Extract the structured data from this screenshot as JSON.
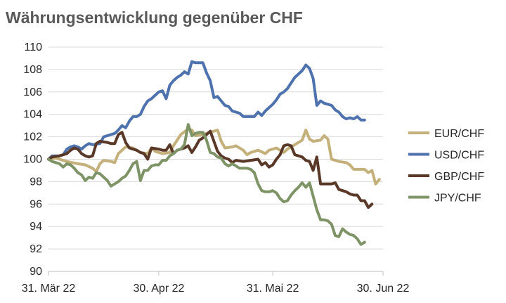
{
  "chart_data": {
    "type": "line",
    "title": "Währungsentwicklung gegenüber CHF",
    "xlabel": "",
    "ylabel": "",
    "ylim": [
      90,
      110
    ],
    "y_ticks": [
      90,
      92,
      94,
      96,
      98,
      100,
      102,
      104,
      106,
      108,
      110
    ],
    "x_range": [
      0,
      91
    ],
    "x_ticks": [
      {
        "x": 0,
        "label": "31. Mär 22"
      },
      {
        "x": 30,
        "label": "30. Apr 22"
      },
      {
        "x": 61,
        "label": "31. Mai 22"
      },
      {
        "x": 91,
        "label": "30. Jun 22"
      }
    ],
    "grid": true,
    "legend_position": "right",
    "series": [
      {
        "name": "EUR/CHF",
        "color": "#C4B07B",
        "points": [
          [
            0,
            100
          ],
          [
            2,
            100.1
          ],
          [
            5,
            99.8
          ],
          [
            8,
            99.6
          ],
          [
            10,
            99.5
          ],
          [
            12,
            99.2
          ],
          [
            13,
            98.9
          ],
          [
            14,
            99.6
          ],
          [
            15,
            99.9
          ],
          [
            17,
            99.8
          ],
          [
            18,
            99.7
          ],
          [
            19,
            100.5
          ],
          [
            21,
            101.1
          ],
          [
            23,
            101
          ],
          [
            25,
            100.6
          ],
          [
            27,
            100.5
          ],
          [
            28,
            101
          ],
          [
            29,
            100.7
          ],
          [
            31,
            100.5
          ],
          [
            33,
            100.6
          ],
          [
            34,
            101.2
          ],
          [
            36,
            102.2
          ],
          [
            38,
            102.7
          ],
          [
            39,
            102.6
          ],
          [
            40,
            102.1
          ],
          [
            42,
            102.2
          ],
          [
            44,
            102.4
          ],
          [
            46,
            102.6
          ],
          [
            47,
            101.6
          ],
          [
            48,
            101
          ],
          [
            50,
            101.1
          ],
          [
            51,
            101.2
          ],
          [
            53,
            100.8
          ],
          [
            54,
            100.4
          ],
          [
            55,
            100.6
          ],
          [
            57,
            100.8
          ],
          [
            59,
            100.5
          ],
          [
            60,
            100.8
          ],
          [
            62,
            101
          ],
          [
            64,
            100.6
          ],
          [
            65,
            100.9
          ],
          [
            67,
            101.3
          ],
          [
            69,
            101.7
          ],
          [
            70,
            102.6
          ],
          [
            71,
            101.8
          ],
          [
            72,
            101.6
          ],
          [
            74,
            101.7
          ],
          [
            75,
            102.1
          ],
          [
            76,
            101.8
          ],
          [
            77,
            100
          ],
          [
            79,
            99.8
          ],
          [
            81,
            99.7
          ],
          [
            82,
            99.5
          ],
          [
            83,
            99.1
          ],
          [
            86,
            99.1
          ],
          [
            87,
            98.8
          ],
          [
            88,
            99
          ],
          [
            89,
            97.8
          ],
          [
            90,
            98.2
          ]
        ]
      },
      {
        "name": "USD/CHF",
        "color": "#4E72AD",
        "points": [
          [
            0,
            100
          ],
          [
            1,
            100.3
          ],
          [
            3,
            100.3
          ],
          [
            4,
            100.4
          ],
          [
            5,
            100.9
          ],
          [
            6,
            101.1
          ],
          [
            7,
            101.2
          ],
          [
            8,
            101.1
          ],
          [
            9,
            100.9
          ],
          [
            10,
            101.2
          ],
          [
            11,
            101.4
          ],
          [
            12,
            101.3
          ],
          [
            14,
            101.4
          ],
          [
            15,
            102
          ],
          [
            17,
            102.2
          ],
          [
            18,
            102.3
          ],
          [
            19,
            102.6
          ],
          [
            20,
            103
          ],
          [
            21,
            102.8
          ],
          [
            22,
            103.4
          ],
          [
            23,
            103.8
          ],
          [
            24,
            103.8
          ],
          [
            25,
            104
          ],
          [
            26,
            104.7
          ],
          [
            27,
            105.2
          ],
          [
            28,
            105.4
          ],
          [
            29,
            105.7
          ],
          [
            30,
            106
          ],
          [
            31,
            106.1
          ],
          [
            32,
            105.4
          ],
          [
            33,
            106.6
          ],
          [
            34,
            107
          ],
          [
            35,
            107.3
          ],
          [
            36,
            107.5
          ],
          [
            37,
            107.8
          ],
          [
            38,
            107.6
          ],
          [
            39,
            108.7
          ],
          [
            40,
            108.6
          ],
          [
            42,
            108.6
          ],
          [
            43,
            107.7
          ],
          [
            44,
            107
          ],
          [
            45,
            105.5
          ],
          [
            46,
            105.6
          ],
          [
            47,
            105.2
          ],
          [
            48,
            104.8
          ],
          [
            49,
            104.7
          ],
          [
            50,
            104.3
          ],
          [
            51,
            104.2
          ],
          [
            52,
            104.1
          ],
          [
            53,
            103.8
          ],
          [
            54,
            103.8
          ],
          [
            55,
            103.8
          ],
          [
            56,
            103.8
          ],
          [
            57,
            104.2
          ],
          [
            58,
            103.9
          ],
          [
            59,
            104.3
          ],
          [
            60,
            104.6
          ],
          [
            61,
            104.9
          ],
          [
            62,
            105.3
          ],
          [
            63,
            105.8
          ],
          [
            64,
            106
          ],
          [
            65,
            106.3
          ],
          [
            66,
            106.8
          ],
          [
            67,
            107.3
          ],
          [
            68,
            107.6
          ],
          [
            69,
            107.9
          ],
          [
            70,
            108.4
          ],
          [
            71,
            108.1
          ],
          [
            72,
            107.2
          ],
          [
            73,
            104.8
          ],
          [
            74,
            105.2
          ],
          [
            75,
            105
          ],
          [
            76,
            104.9
          ],
          [
            77,
            104.8
          ],
          [
            78,
            104.4
          ],
          [
            79,
            104.2
          ],
          [
            80,
            103.8
          ],
          [
            81,
            103.6
          ],
          [
            82,
            103.7
          ],
          [
            83,
            103.6
          ],
          [
            84,
            103.8
          ],
          [
            85,
            103.5
          ],
          [
            86,
            103.5
          ]
        ]
      },
      {
        "name": "GBP/CHF",
        "color": "#5A3828",
        "points": [
          [
            0,
            100
          ],
          [
            1,
            100.2
          ],
          [
            3,
            100.3
          ],
          [
            5,
            100.5
          ],
          [
            6,
            100.8
          ],
          [
            7,
            101
          ],
          [
            8,
            100.9
          ],
          [
            9,
            100.5
          ],
          [
            10,
            100.3
          ],
          [
            11,
            100.2
          ],
          [
            12,
            100.3
          ],
          [
            13,
            101.4
          ],
          [
            14,
            101.6
          ],
          [
            16,
            101.5
          ],
          [
            17,
            101.4
          ],
          [
            18,
            101.4
          ],
          [
            19,
            102.2
          ],
          [
            20,
            102.4
          ],
          [
            21,
            101.5
          ],
          [
            22,
            101
          ],
          [
            23,
            100.9
          ],
          [
            24,
            100.8
          ],
          [
            25,
            100.6
          ],
          [
            26,
            100.5
          ],
          [
            27,
            100
          ],
          [
            28,
            101
          ],
          [
            30,
            100.9
          ],
          [
            31,
            100.8
          ],
          [
            32,
            100.8
          ],
          [
            33,
            101.3
          ],
          [
            34,
            100.5
          ],
          [
            35,
            100.8
          ],
          [
            36,
            100.9
          ],
          [
            37,
            101
          ],
          [
            38,
            101.2
          ],
          [
            39,
            100.6
          ],
          [
            40,
            101.1
          ],
          [
            41,
            101.7
          ],
          [
            42,
            101.9
          ],
          [
            43,
            102.2
          ],
          [
            44,
            102.5
          ],
          [
            45,
            101.6
          ],
          [
            46,
            100.7
          ],
          [
            47,
            100.3
          ],
          [
            48,
            100.1
          ],
          [
            49,
            100
          ],
          [
            50,
            99.7
          ],
          [
            51,
            99.9
          ],
          [
            53,
            99.8
          ],
          [
            55,
            99.9
          ],
          [
            57,
            100
          ],
          [
            58,
            99.5
          ],
          [
            59,
            99.7
          ],
          [
            60,
            99.3
          ],
          [
            61,
            99.5
          ],
          [
            62,
            100
          ],
          [
            63,
            100.4
          ],
          [
            64,
            101.2
          ],
          [
            65,
            101.3
          ],
          [
            66,
            101.2
          ],
          [
            67,
            100.4
          ],
          [
            68,
            100.3
          ],
          [
            69,
            100.2
          ],
          [
            70,
            99.9
          ],
          [
            71,
            99.8
          ],
          [
            72,
            99
          ],
          [
            73,
            100.2
          ],
          [
            74,
            97.8
          ],
          [
            75,
            97.8
          ],
          [
            77,
            97.8
          ],
          [
            78,
            97.9
          ],
          [
            79,
            97.3
          ],
          [
            80,
            97.2
          ],
          [
            81,
            97.1
          ],
          [
            82,
            96.9
          ],
          [
            83,
            96.8
          ],
          [
            84,
            96.8
          ],
          [
            85,
            96.3
          ],
          [
            86,
            96.3
          ],
          [
            87,
            95.7
          ],
          [
            88,
            96
          ]
        ]
      },
      {
        "name": "JPY/CHF",
        "color": "#7F9466",
        "points": [
          [
            0,
            100
          ],
          [
            1,
            99.8
          ],
          [
            2,
            99.7
          ],
          [
            3,
            99.6
          ],
          [
            4,
            99.3
          ],
          [
            5,
            99.6
          ],
          [
            6,
            99.5
          ],
          [
            7,
            99.2
          ],
          [
            8,
            98.8
          ],
          [
            9,
            98.6
          ],
          [
            10,
            98.1
          ],
          [
            11,
            98.4
          ],
          [
            12,
            98.3
          ],
          [
            13,
            98.8
          ],
          [
            14,
            98.7
          ],
          [
            15,
            98.4
          ],
          [
            16,
            98.1
          ],
          [
            17,
            97.6
          ],
          [
            18,
            97.8
          ],
          [
            19,
            98
          ],
          [
            20,
            98.3
          ],
          [
            21,
            98.5
          ],
          [
            22,
            99
          ],
          [
            23,
            99.6
          ],
          [
            24,
            99.8
          ],
          [
            25,
            98.1
          ],
          [
            26,
            99
          ],
          [
            27,
            99
          ],
          [
            28,
            99.4
          ],
          [
            29,
            99.5
          ],
          [
            30,
            99.5
          ],
          [
            31,
            99.9
          ],
          [
            32,
            99.9
          ],
          [
            33,
            100.3
          ],
          [
            34,
            100.5
          ],
          [
            35,
            100.8
          ],
          [
            36,
            100.9
          ],
          [
            37,
            101.3
          ],
          [
            38,
            103.1
          ],
          [
            39,
            102.1
          ],
          [
            40,
            102.3
          ],
          [
            41,
            102.4
          ],
          [
            42,
            102.4
          ],
          [
            43,
            101.7
          ],
          [
            44,
            100.6
          ],
          [
            45,
            100.5
          ],
          [
            46,
            100.2
          ],
          [
            47,
            100.1
          ],
          [
            48,
            99.6
          ],
          [
            49,
            99.4
          ],
          [
            50,
            99.6
          ],
          [
            51,
            99.4
          ],
          [
            52,
            99.2
          ],
          [
            53,
            99.2
          ],
          [
            54,
            99.2
          ],
          [
            55,
            99.1
          ],
          [
            56,
            98.8
          ],
          [
            57,
            97.8
          ],
          [
            58,
            97.2
          ],
          [
            59,
            97.1
          ],
          [
            60,
            97.1
          ],
          [
            61,
            97.2
          ],
          [
            62,
            97
          ],
          [
            63,
            96.5
          ],
          [
            64,
            96.2
          ],
          [
            65,
            96.3
          ],
          [
            66,
            96.8
          ],
          [
            67,
            97.2
          ],
          [
            68,
            97.5
          ],
          [
            69,
            97.9
          ],
          [
            70,
            97.5
          ],
          [
            71,
            97.9
          ],
          [
            72,
            96.7
          ],
          [
            73,
            95.5
          ],
          [
            74,
            94.6
          ],
          [
            75,
            94.6
          ],
          [
            76,
            94.5
          ],
          [
            77,
            94.2
          ],
          [
            78,
            93.2
          ],
          [
            79,
            93.1
          ],
          [
            80,
            93.8
          ],
          [
            81,
            93.5
          ],
          [
            82,
            93.3
          ],
          [
            83,
            93.2
          ],
          [
            84,
            92.9
          ],
          [
            85,
            92.4
          ],
          [
            86,
            92.6
          ]
        ]
      }
    ]
  }
}
